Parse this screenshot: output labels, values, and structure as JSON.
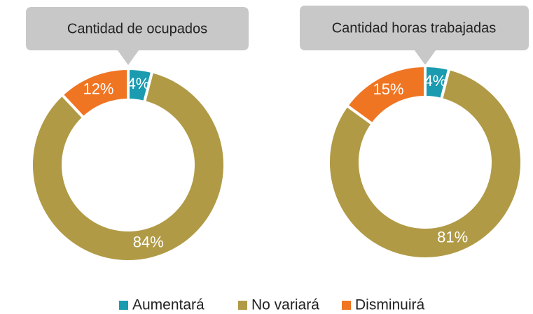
{
  "chart_data": [
    {
      "type": "donut",
      "title": "Cantidad de ocupados",
      "categories": [
        "Aumentará",
        "No variará",
        "Disminuirá"
      ],
      "values": [
        4,
        84,
        12
      ],
      "value_labels": [
        "4%",
        "84%",
        "12%"
      ],
      "colors": [
        "#1a9bb0",
        "#b09a45",
        "#f07522"
      ]
    },
    {
      "type": "donut",
      "title": "Cantidad horas trabajadas",
      "categories": [
        "Aumentará",
        "No variará",
        "Disminuirá"
      ],
      "values": [
        4,
        81,
        15
      ],
      "value_labels": [
        "4%",
        "81%",
        "15%"
      ],
      "colors": [
        "#1a9bb0",
        "#b09a45",
        "#f07522"
      ]
    }
  ]
}
